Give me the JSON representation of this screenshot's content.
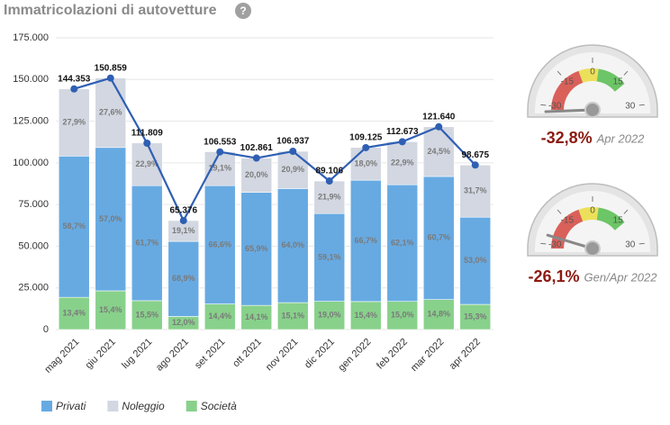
{
  "chart_data": [
    {
      "type": "bar",
      "title": "Immatricolazioni di autovetture",
      "help": "?",
      "categories": [
        "mag 2021",
        "giu 2021",
        "lug 2021",
        "ago 2021",
        "set 2021",
        "ott 2021",
        "nov 2021",
        "dic 2021",
        "gen 2022",
        "feb 2022",
        "mar 2022",
        "apr 2022"
      ],
      "series": [
        {
          "name": "Privati",
          "color": "#67aae2",
          "values": [
            58.7,
            57.0,
            61.7,
            68.9,
            66.6,
            65.9,
            64.0,
            59.1,
            66.7,
            62.1,
            60.7,
            53.0
          ],
          "value_labels": [
            "58,7%",
            "57,0%",
            "61,7%",
            "68,9%",
            "66,6%",
            "65,9%",
            "64,0%",
            "59,1%",
            "66,7%",
            "62,1%",
            "60,7%",
            "53,0%"
          ]
        },
        {
          "name": "Noleggio",
          "color": "#d2d7e1",
          "values": [
            27.9,
            27.6,
            22.9,
            19.1,
            19.1,
            20.0,
            20.9,
            21.9,
            18.0,
            22.9,
            24.5,
            31.7
          ],
          "value_labels": [
            "27,9%",
            "27,6%",
            "22,9%",
            "19,1%",
            "19,1%",
            "20,0%",
            "20,9%",
            "21,9%",
            "18,0%",
            "22,9%",
            "24,5%",
            "31,7%"
          ]
        },
        {
          "name": "Società",
          "color": "#88d18b",
          "values": [
            13.4,
            15.4,
            15.5,
            12.0,
            14.4,
            14.1,
            15.1,
            19.0,
            15.4,
            15.0,
            14.8,
            15.3
          ],
          "value_labels": [
            "13,4%",
            "15,4%",
            "15,5%",
            "12,0%",
            "14,4%",
            "14,1%",
            "15,1%",
            "19,0%",
            "15,4%",
            "15,0%",
            "14,8%",
            "15,3%"
          ]
        }
      ],
      "stack_order": [
        2,
        0,
        1
      ],
      "line": {
        "color": "#2f5fb3",
        "values": [
          144353,
          150859,
          111809,
          65376,
          106553,
          102861,
          106937,
          89106,
          109125,
          112673,
          121640,
          98675
        ],
        "value_labels": [
          "144.353",
          "150.859",
          "111.809",
          "65.376",
          "106.553",
          "102.861",
          "106.937",
          "89.106",
          "109.125",
          "112.673",
          "121.640",
          "98.675"
        ]
      },
      "ylim": [
        0,
        175000
      ],
      "yticks": [
        0,
        {
          "value": 25000,
          "label": "25.000"
        },
        {
          "value": 50000,
          "label": "50.000"
        },
        {
          "value": 75000,
          "label": "75.000"
        },
        {
          "value": 100000,
          "label": "100.000"
        },
        {
          "value": 125000,
          "label": "125.000"
        },
        {
          "value": 150000,
          "label": "150.000"
        },
        {
          "value": 175000,
          "label": "175.000"
        }
      ],
      "grid": true
    },
    {
      "type": "gauge",
      "value": -32.8,
      "value_label": "-32,8%",
      "caption": "Apr 2022",
      "lim": [
        -32,
        32
      ],
      "ticks": [
        -30,
        -15,
        0,
        15,
        30
      ],
      "bands": [
        {
          "from": -32,
          "to": -7,
          "color": "#d9615a"
        },
        {
          "from": -7,
          "to": 3,
          "color": "#ece05a"
        },
        {
          "from": 3,
          "to": 18,
          "color": "#6cc566"
        }
      ]
    },
    {
      "type": "gauge",
      "value": -26.1,
      "value_label": "-26,1%",
      "caption": "Gen/Apr 2022",
      "lim": [
        -32,
        32
      ],
      "ticks": [
        -30,
        -15,
        0,
        15,
        30
      ],
      "bands": [
        {
          "from": -32,
          "to": -7,
          "color": "#d9615a"
        },
        {
          "from": -7,
          "to": 3,
          "color": "#ece05a"
        },
        {
          "from": 3,
          "to": 18,
          "color": "#6cc566"
        }
      ]
    }
  ]
}
